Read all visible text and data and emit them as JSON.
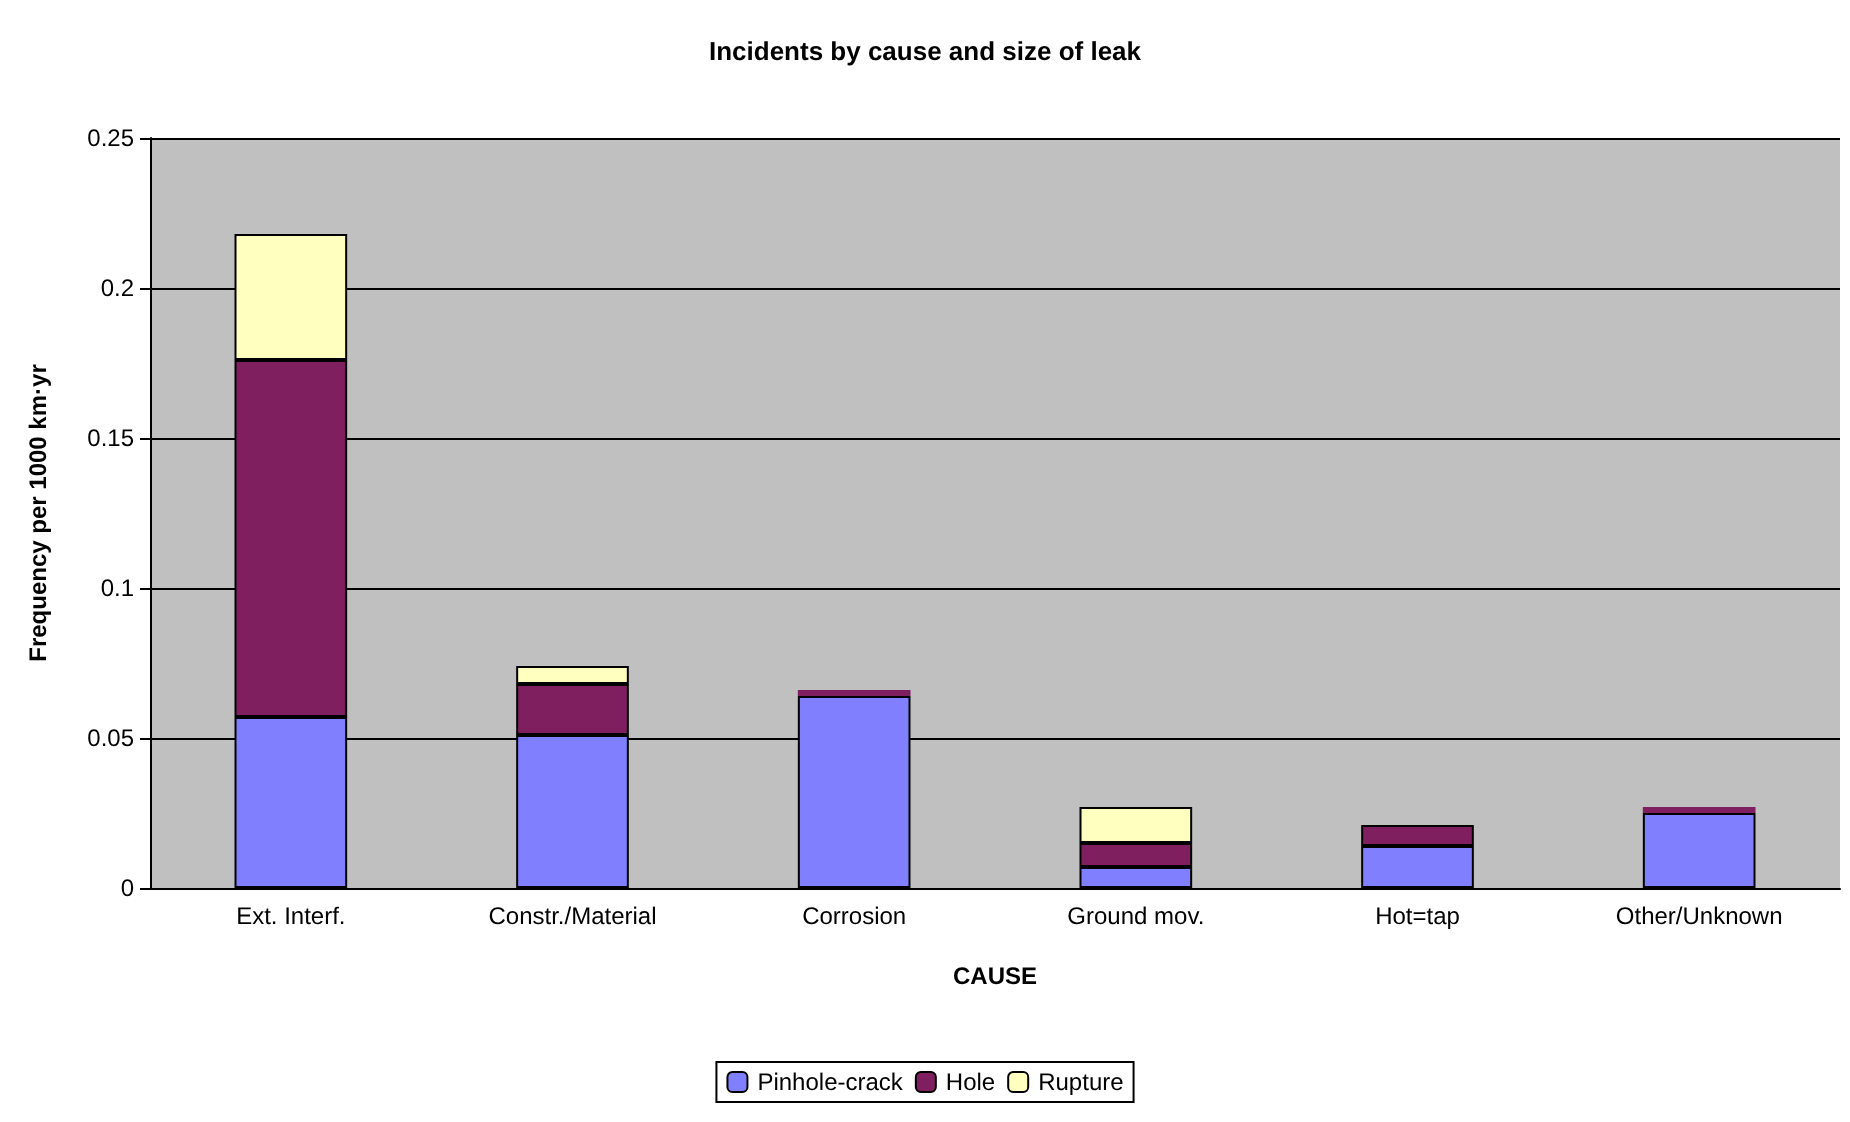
{
  "chart_data": {
    "type": "bar",
    "title": "Incidents by cause and size of leak",
    "xlabel": "CAUSE",
    "ylabel": "Frequency per 1000 km·yr",
    "categories": [
      "Ext. Interf.",
      "Constr./Material",
      "Corrosion",
      "Ground mov.",
      "Hot=tap",
      "Other/Unknown"
    ],
    "series": [
      {
        "name": "Pinhole-crack",
        "color": "#8080ff",
        "values": [
          0.057,
          0.051,
          0.064,
          0.007,
          0.014,
          0.025
        ]
      },
      {
        "name": "Hole",
        "color": "#801f5f",
        "values": [
          0.119,
          0.017,
          0.002,
          0.008,
          0.007,
          0.002
        ]
      },
      {
        "name": "Rupture",
        "color": "#ffffc0",
        "values": [
          0.042,
          0.006,
          null,
          0.012,
          0,
          null
        ]
      }
    ],
    "stacked": true,
    "ylim": [
      0,
      0.25
    ],
    "yticks": [
      0,
      0.05,
      0.1,
      0.15,
      0.2,
      0.25
    ],
    "grid": "y",
    "legend": "bottom"
  }
}
